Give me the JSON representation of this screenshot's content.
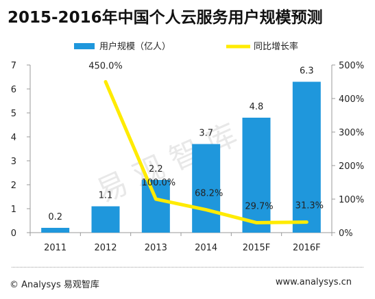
{
  "title": "2015-2016年中国个人云服务用户规模预测",
  "footer": {
    "copyright": "© Analysys 易观智库",
    "website": "www.analysys.cn"
  },
  "watermark": "易观智库",
  "colors": {
    "bar": "#1f97dc",
    "line": "#ffeb00",
    "axis": "#999999"
  },
  "chart_data": {
    "type": "bar",
    "categories": [
      "2011",
      "2012",
      "2013",
      "2014",
      "2015F",
      "2016F"
    ],
    "series": [
      {
        "name": "用户规模（亿人）",
        "type": "bar",
        "axis": "left",
        "values": [
          0.2,
          1.1,
          2.2,
          3.7,
          4.8,
          6.3
        ],
        "labels": [
          "0.2",
          "1.1",
          "2.2",
          "3.7",
          "4.8",
          "6.3"
        ]
      },
      {
        "name": "同比增长率",
        "type": "line",
        "axis": "right",
        "values": [
          null,
          450.0,
          100.0,
          68.2,
          29.7,
          31.3
        ],
        "labels": [
          "",
          "450.0%",
          "100.0%",
          "68.2%",
          "29.7%",
          "31.3%"
        ]
      }
    ],
    "ylim_left": [
      0,
      7
    ],
    "ylim_right": [
      0,
      500
    ],
    "yticks_left": [
      "0",
      "1",
      "2",
      "3",
      "4",
      "5",
      "6",
      "7"
    ],
    "yticks_right": [
      "0%",
      "100%",
      "200%",
      "300%",
      "400%",
      "500%"
    ],
    "legend": "top-center",
    "grid": false
  }
}
